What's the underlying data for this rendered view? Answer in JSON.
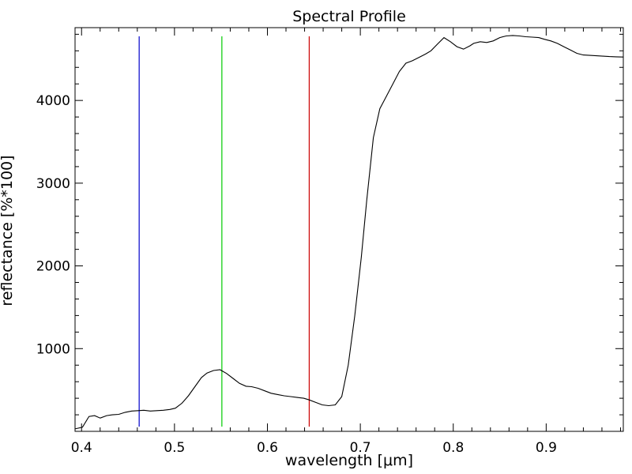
{
  "chart_data": {
    "type": "line",
    "title": "Spectral Profile",
    "xlabel": "wavelength [μm]",
    "ylabel": "reflectance [%*100]",
    "xlim": [
      0.393,
      0.983
    ],
    "ylim": [
      0,
      4880
    ],
    "x_ticks": [
      0.4,
      0.5,
      0.6,
      0.7,
      0.8,
      0.9
    ],
    "x_tick_labels": [
      "0.4",
      "0.5",
      "0.6",
      "0.7",
      "0.8",
      "0.9"
    ],
    "y_ticks": [
      1000,
      2000,
      3000,
      4000
    ],
    "y_tick_labels": [
      "1000",
      "2000",
      "3000",
      "4000"
    ],
    "grid": false,
    "series": [
      {
        "color": "#000000",
        "x": [
          0.393,
          0.401,
          0.408,
          0.414,
          0.42,
          0.427,
          0.433,
          0.44,
          0.447,
          0.454,
          0.461,
          0.467,
          0.474,
          0.481,
          0.488,
          0.495,
          0.501,
          0.508,
          0.515,
          0.522,
          0.529,
          0.535,
          0.542,
          0.549,
          0.556,
          0.563,
          0.57,
          0.577,
          0.583,
          0.59,
          0.597,
          0.604,
          0.611,
          0.618,
          0.625,
          0.632,
          0.639,
          0.645,
          0.652,
          0.659,
          0.666,
          0.673,
          0.68,
          0.687,
          0.694,
          0.701,
          0.707,
          0.714,
          0.721,
          0.728,
          0.735,
          0.742,
          0.749,
          0.756,
          0.763,
          0.77,
          0.776,
          0.783,
          0.79,
          0.797,
          0.804,
          0.811,
          0.818,
          0.822,
          0.829,
          0.836,
          0.843,
          0.85,
          0.857,
          0.864,
          0.871,
          0.878,
          0.885,
          0.892,
          0.898,
          0.905,
          0.912,
          0.919,
          0.926,
          0.933,
          0.94,
          0.947,
          0.954,
          0.961,
          0.968,
          0.975,
          0.983
        ],
        "y": [
          30,
          50,
          180,
          190,
          160,
          190,
          200,
          205,
          230,
          245,
          250,
          255,
          245,
          250,
          255,
          265,
          280,
          340,
          430,
          540,
          650,
          705,
          735,
          745,
          700,
          640,
          580,
          545,
          540,
          520,
          490,
          460,
          445,
          430,
          420,
          410,
          400,
          380,
          350,
          320,
          310,
          320,
          420,
          800,
          1400,
          2100,
          2800,
          3550,
          3900,
          4050,
          4200,
          4350,
          4450,
          4480,
          4520,
          4560,
          4600,
          4680,
          4760,
          4710,
          4650,
          4620,
          4660,
          4690,
          4710,
          4700,
          4720,
          4760,
          4780,
          4785,
          4780,
          4770,
          4765,
          4760,
          4740,
          4720,
          4690,
          4650,
          4610,
          4570,
          4550,
          4545,
          4540,
          4535,
          4530,
          4528,
          4525
        ]
      }
    ],
    "vertical_lines": [
      {
        "x": 0.462,
        "color": "#0000cc"
      },
      {
        "x": 0.551,
        "color": "#00cc00"
      },
      {
        "x": 0.645,
        "color": "#cc0000"
      }
    ]
  }
}
